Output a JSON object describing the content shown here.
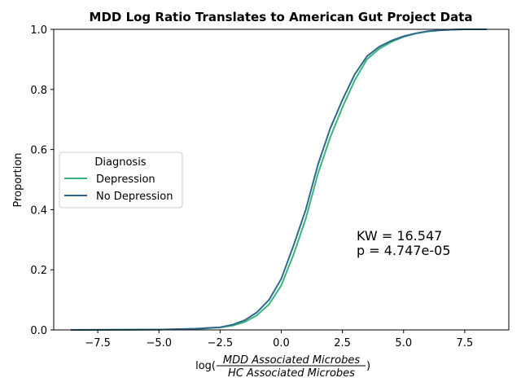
{
  "chart_data": {
    "type": "line",
    "title": "MDD Log Ratio Translates to American Gut Project Data",
    "ylabel": "Proportion",
    "xlabel": {
      "prefix": "log(",
      "numerator": "MDD Associated Microbes",
      "denominator": "HC Associated Microbes",
      "suffix": ")"
    },
    "xlim": [
      -9.3,
      9.3
    ],
    "ylim": [
      0.0,
      1.0
    ],
    "xticks": [
      -7.5,
      -5.0,
      -2.5,
      0.0,
      2.5,
      5.0,
      7.5
    ],
    "xtick_labels": [
      "−7.5",
      "−5.0",
      "−2.5",
      "0.0",
      "2.5",
      "5.0",
      "7.5"
    ],
    "yticks": [
      0.0,
      0.2,
      0.4,
      0.6,
      0.8,
      1.0
    ],
    "ytick_labels": [
      "0.0",
      "0.2",
      "0.4",
      "0.6",
      "0.8",
      "1.0"
    ],
    "grid": false,
    "legend": {
      "title": "Diagnosis",
      "placement": "center-left"
    },
    "annotations": [
      {
        "text": "KW = 16.547"
      },
      {
        "text": "p = 4.747e-05"
      }
    ],
    "series": [
      {
        "name": "Depression",
        "color": "#35b779",
        "x": [
          -8.6,
          -5.0,
          -3.5,
          -2.5,
          -2.0,
          -1.5,
          -1.0,
          -0.5,
          0.0,
          0.5,
          1.0,
          1.5,
          2.0,
          2.5,
          3.0,
          3.5,
          4.0,
          4.5,
          5.0,
          5.5,
          6.0,
          6.5,
          7.0,
          7.5,
          8.4
        ],
        "y": [
          0.0,
          0.001,
          0.003,
          0.008,
          0.014,
          0.026,
          0.048,
          0.085,
          0.148,
          0.25,
          0.37,
          0.52,
          0.64,
          0.74,
          0.83,
          0.9,
          0.935,
          0.958,
          0.975,
          0.986,
          0.993,
          0.997,
          0.999,
          1.0,
          1.0
        ]
      },
      {
        "name": "No Depression",
        "color": "#31688e",
        "x": [
          -8.6,
          -5.0,
          -3.5,
          -2.5,
          -2.0,
          -1.5,
          -1.0,
          -0.5,
          0.0,
          0.5,
          1.0,
          1.5,
          2.0,
          2.5,
          3.0,
          3.5,
          4.0,
          4.5,
          5.0,
          5.5,
          6.0,
          6.5,
          7.0,
          7.5,
          8.4
        ],
        "y": [
          0.0,
          0.001,
          0.004,
          0.009,
          0.017,
          0.032,
          0.058,
          0.1,
          0.17,
          0.28,
          0.4,
          0.55,
          0.67,
          0.765,
          0.85,
          0.91,
          0.942,
          0.962,
          0.977,
          0.987,
          0.994,
          0.997,
          0.999,
          1.0,
          1.0
        ]
      }
    ]
  }
}
